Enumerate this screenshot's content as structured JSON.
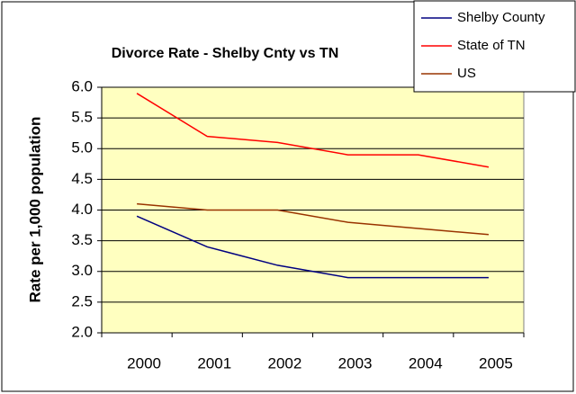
{
  "chart_data": {
    "type": "line",
    "title": "Divorce Rate - Shelby Cnty vs TN",
    "y_label": "Rate per 1,000 population",
    "categories": [
      "2000",
      "2001",
      "2002",
      "2003",
      "2004",
      "2005"
    ],
    "series": [
      {
        "name": "Shelby County",
        "color": "#000080",
        "values": [
          3.9,
          3.4,
          3.1,
          2.9,
          2.9,
          2.9
        ]
      },
      {
        "name": "State of TN",
        "color": "#ff0000",
        "values": [
          5.9,
          5.2,
          5.1,
          4.9,
          4.9,
          4.7
        ]
      },
      {
        "name": "US",
        "color": "#993300",
        "values": [
          4.1,
          4.0,
          4.0,
          3.8,
          3.7,
          3.6
        ]
      }
    ],
    "ylim": [
      2,
      6
    ],
    "yticks": [
      {
        "value": 2,
        "label": "2.0"
      },
      {
        "value": 2.5,
        "label": "2.5"
      },
      {
        "value": 3,
        "label": "3.0"
      },
      {
        "value": 3.5,
        "label": "3.5"
      },
      {
        "value": 4,
        "label": "4.0"
      },
      {
        "value": 4.5,
        "label": "4.5"
      },
      {
        "value": 5,
        "label": "5.0"
      },
      {
        "value": 5.5,
        "label": "5.5"
      },
      {
        "value": 6,
        "label": "6.0"
      }
    ],
    "grid": true,
    "legend": "top-right",
    "plot_background": "#ffffc0"
  }
}
